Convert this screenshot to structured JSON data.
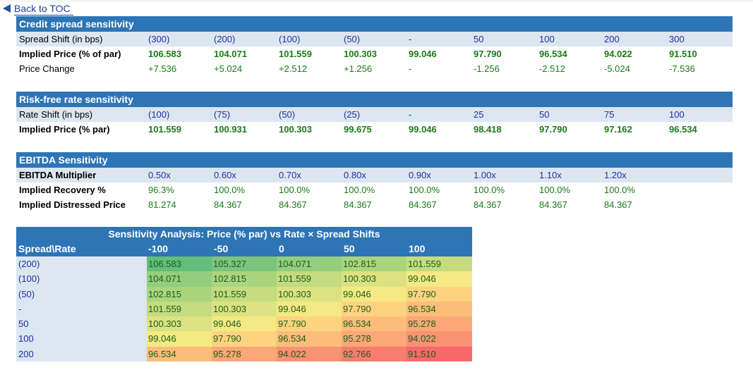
{
  "nav": {
    "back_label": "Back to TOC"
  },
  "credit": {
    "title": "Credit spread sensitivity",
    "shift_label": "Spread Shift (in bps)",
    "shifts": [
      "(300)",
      "(200)",
      "(100)",
      "(50)",
      "-",
      "50",
      "100",
      "200",
      "300"
    ],
    "price_label": "Implied Price (% of par)",
    "prices": [
      "106.583",
      "104.071",
      "101.559",
      "100.303",
      "99.046",
      "97.790",
      "96.534",
      "94.022",
      "91.510"
    ],
    "change_label": "Price Change",
    "changes": [
      "+7.536",
      "+5.024",
      "+2.512",
      "+1.256",
      "-",
      "-1.256",
      "-2.512",
      "-5.024",
      "-7.536"
    ]
  },
  "rate": {
    "title": "Risk-free rate sensitivity",
    "shift_label": "Rate Shift (in bps)",
    "shifts": [
      "(100)",
      "(75)",
      "(50)",
      "(25)",
      "-",
      "25",
      "50",
      "75",
      "100"
    ],
    "price_label": "Implied Price (% par)",
    "prices": [
      "101.559",
      "100.931",
      "100.303",
      "99.675",
      "99.046",
      "98.418",
      "97.790",
      "97.162",
      "96.534"
    ]
  },
  "ebitda": {
    "title": "EBITDA Sensitivity",
    "mult_label": "EBITDA Multiplier",
    "mults": [
      "0.50x",
      "0.60x",
      "0.70x",
      "0.80x",
      "0.90x",
      "1.00x",
      "1.10x",
      "1.20x"
    ],
    "recovery_label": "Implied Recovery %",
    "recoveries": [
      "96.3%",
      "100.0%",
      "100.0%",
      "100.0%",
      "100.0%",
      "100.0%",
      "100.0%",
      "100.0%"
    ],
    "distressed_label": "Implied Distressed Price",
    "distressed": [
      "81.274",
      "84.367",
      "84.367",
      "84.367",
      "84.367",
      "84.367",
      "84.367",
      "84.367"
    ]
  },
  "matrix": {
    "title": "Sensitivity Analysis: Price (% par) vs Rate × Spread Shifts",
    "corner": "Spread\\Rate",
    "cols": [
      "-100",
      "-50",
      "0",
      "50",
      "100"
    ],
    "rows": [
      {
        "label": "(200)",
        "values": [
          "106.583",
          "105.327",
          "104.071",
          "102.815",
          "101.559"
        ],
        "colors": [
          "#63be7b",
          "#7bc57d",
          "#93cd7e",
          "#abd47f",
          "#c4db80"
        ]
      },
      {
        "label": "(100)",
        "values": [
          "104.071",
          "102.815",
          "101.559",
          "100.303",
          "99.046"
        ],
        "colors": [
          "#93cd7e",
          "#abd47f",
          "#c4db80",
          "#dce281",
          "#f4e982"
        ]
      },
      {
        "label": "(50)",
        "values": [
          "102.815",
          "101.559",
          "100.303",
          "99.046",
          "97.790"
        ],
        "colors": [
          "#abd47f",
          "#c4db80",
          "#dce281",
          "#f4e982",
          "#fed380"
        ]
      },
      {
        "label": "-",
        "values": [
          "101.559",
          "100.303",
          "99.046",
          "97.790",
          "96.534"
        ],
        "colors": [
          "#c4db80",
          "#dce281",
          "#f4e982",
          "#fed380",
          "#fcbd7b"
        ]
      },
      {
        "label": "50",
        "values": [
          "100.303",
          "99.046",
          "97.790",
          "96.534",
          "95.278"
        ],
        "colors": [
          "#dce281",
          "#f4e982",
          "#fed380",
          "#fcbd7b",
          "#fba777"
        ]
      },
      {
        "label": "100",
        "values": [
          "99.046",
          "97.790",
          "96.534",
          "95.278",
          "94.022"
        ],
        "colors": [
          "#f4e982",
          "#fed380",
          "#fcbd7b",
          "#fba777",
          "#f99173"
        ]
      },
      {
        "label": "200",
        "values": [
          "96.534",
          "95.278",
          "94.022",
          "92.766",
          "91.510"
        ],
        "colors": [
          "#fcbd7b",
          "#fba777",
          "#f99173",
          "#f87d70",
          "#f8696b"
        ]
      }
    ]
  }
}
